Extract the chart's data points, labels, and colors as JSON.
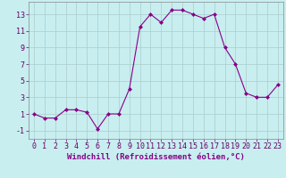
{
  "x": [
    0,
    1,
    2,
    3,
    4,
    5,
    6,
    7,
    8,
    9,
    10,
    11,
    12,
    13,
    14,
    15,
    16,
    17,
    18,
    19,
    20,
    21,
    22,
    23
  ],
  "y": [
    1,
    0.5,
    0.5,
    1.5,
    1.5,
    1.2,
    -0.8,
    1.0,
    1.0,
    4.0,
    11.5,
    13.0,
    12.0,
    13.5,
    13.5,
    13.0,
    12.5,
    13.0,
    9.0,
    7.0,
    3.5,
    3.0,
    3.0,
    4.5
  ],
  "line_color": "#880088",
  "marker": "D",
  "marker_size": 2.0,
  "bg_color": "#c8eef0",
  "grid_color": "#aacccc",
  "xlabel": "Windchill (Refroidissement éolien,°C)",
  "xlabel_fontsize": 6.5,
  "tick_fontsize": 6.0,
  "ylim": [
    -2,
    14.5
  ],
  "yticks": [
    -1,
    1,
    3,
    5,
    7,
    9,
    11,
    13
  ],
  "xticks": [
    0,
    1,
    2,
    3,
    4,
    5,
    6,
    7,
    8,
    9,
    10,
    11,
    12,
    13,
    14,
    15,
    16,
    17,
    18,
    19,
    20,
    21,
    22,
    23
  ],
  "xlim": [
    -0.5,
    23.5
  ]
}
